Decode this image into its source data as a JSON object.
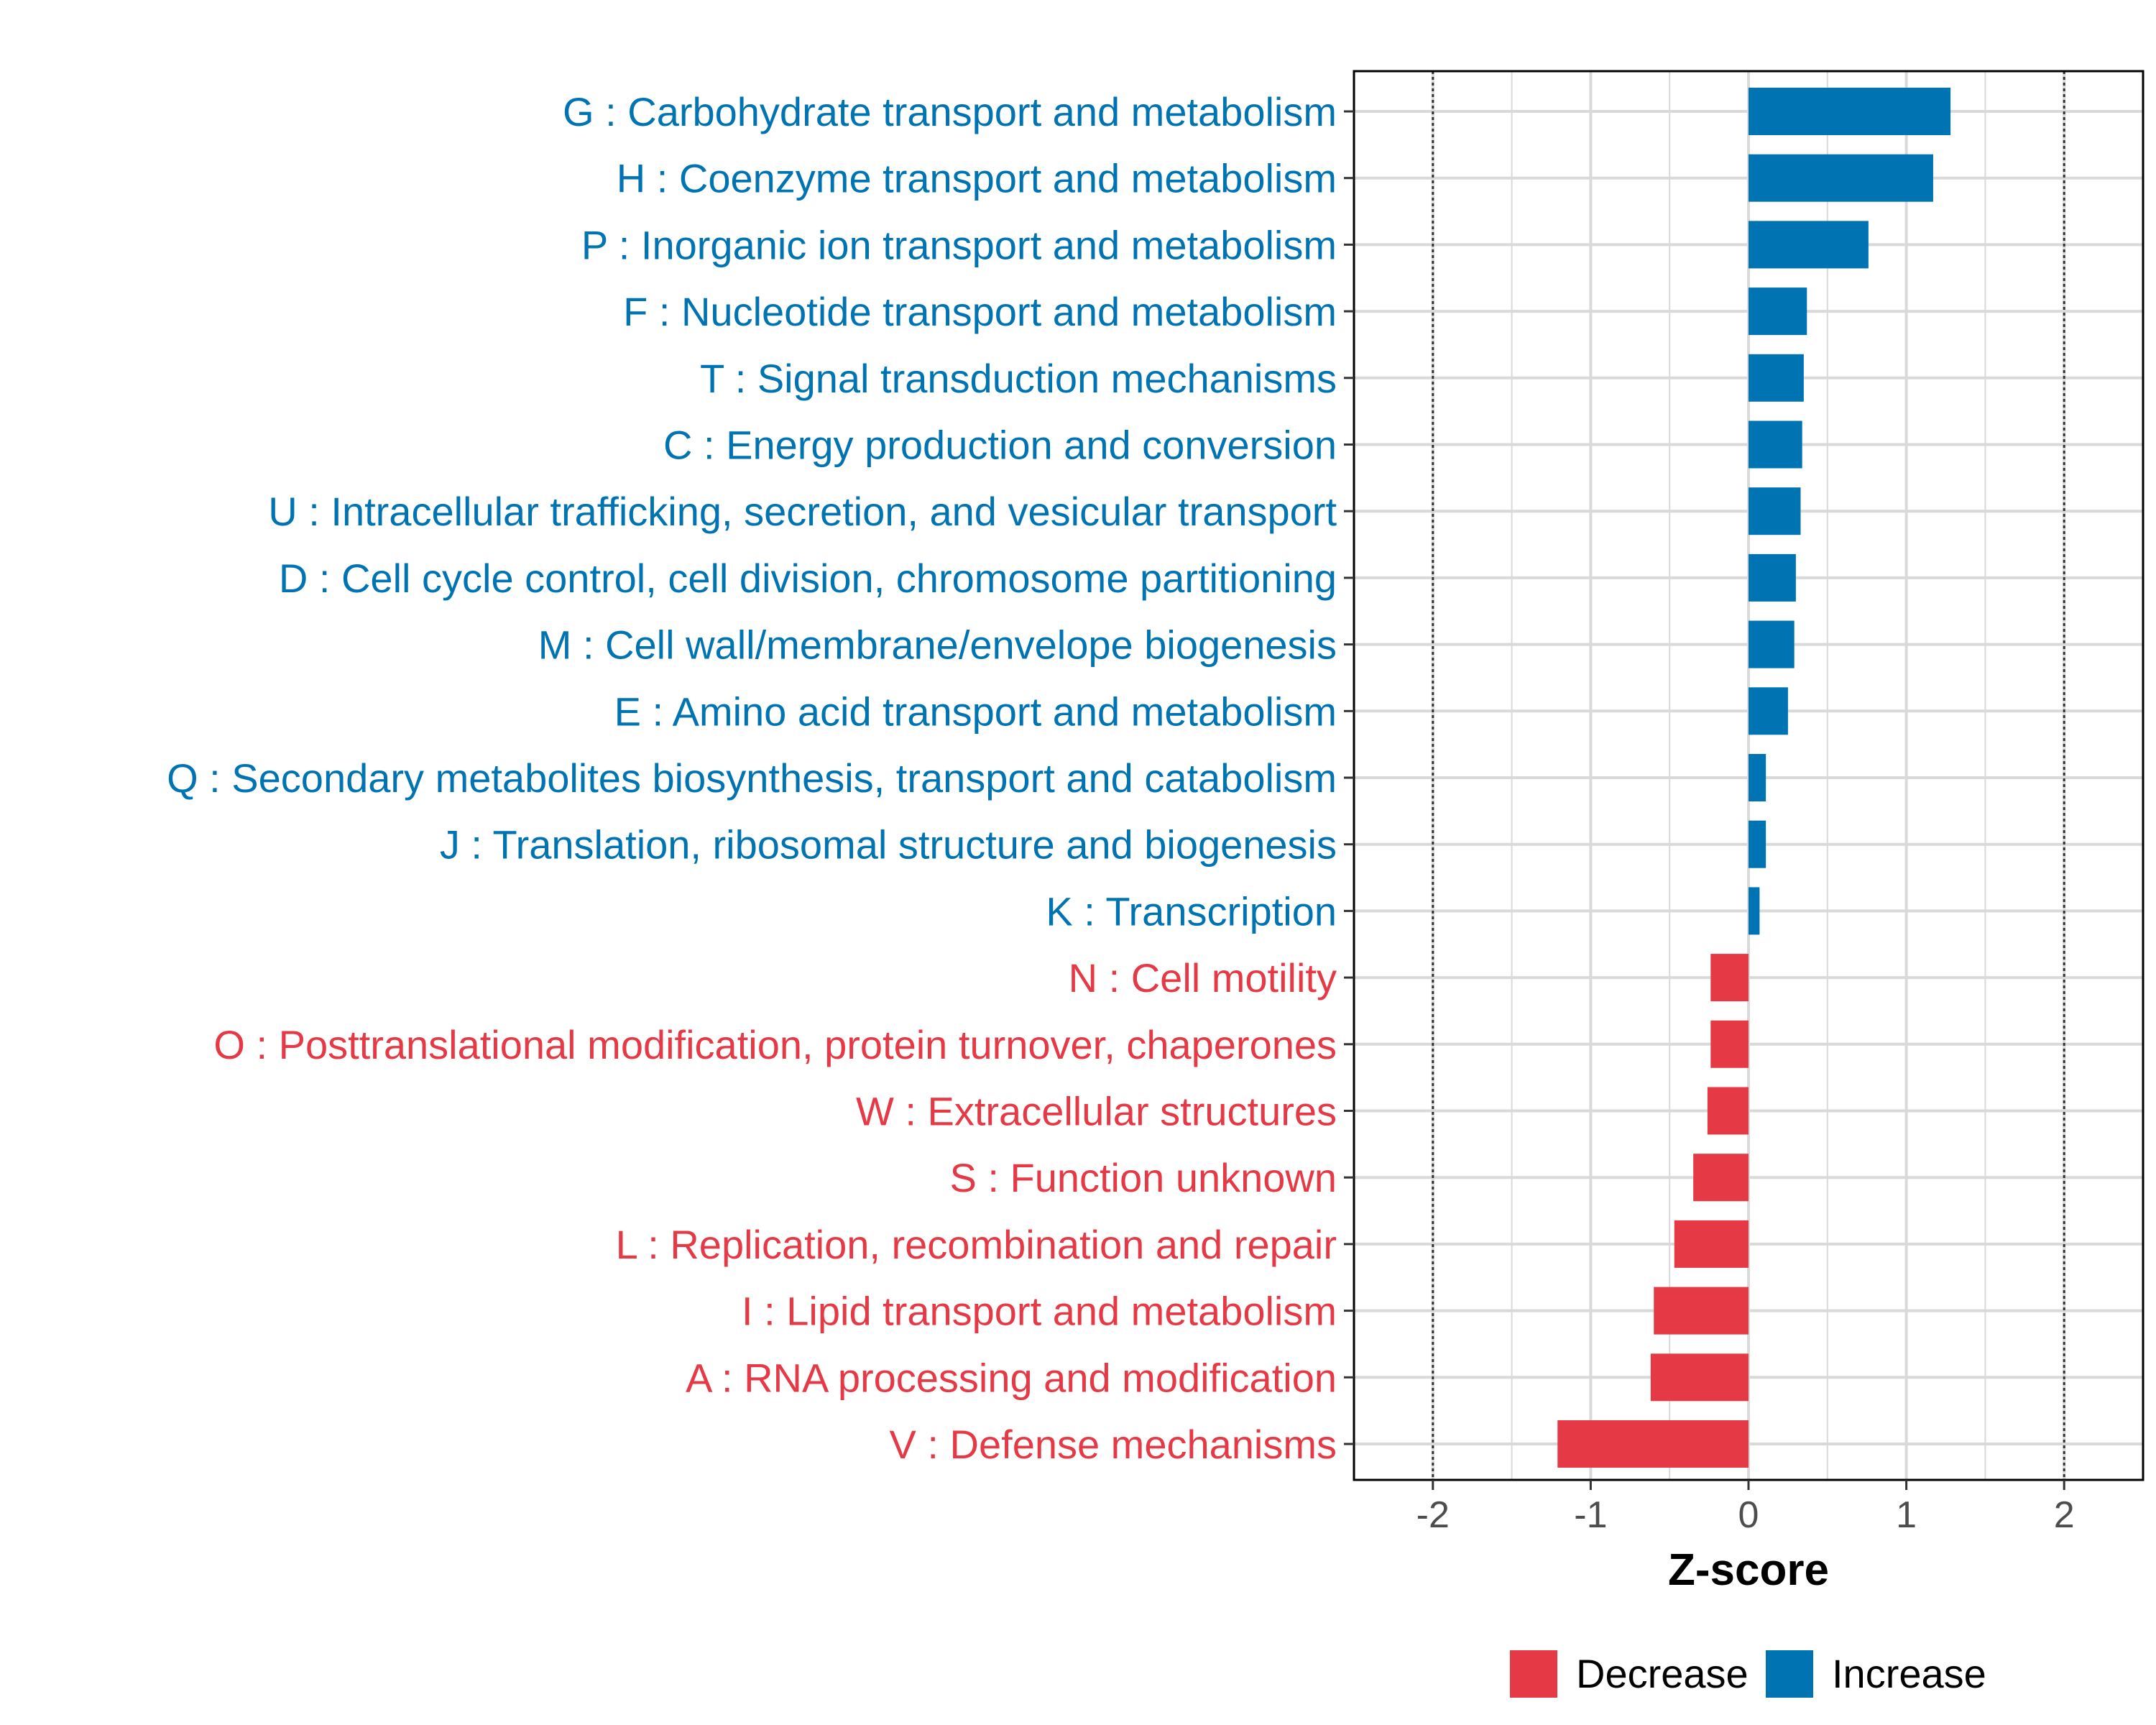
{
  "chart_data": {
    "type": "bar",
    "orientation": "horizontal",
    "title": "",
    "xlabel": "Z-score",
    "ylabel": "",
    "xlim": [
      -2.5,
      2.5
    ],
    "x_ticks": [
      -2,
      -1,
      0,
      1,
      2
    ],
    "x_tick_labels": [
      "-2",
      "-1",
      "0",
      "1",
      "2"
    ],
    "reference_lines": [
      -2,
      2
    ],
    "grid": true,
    "legend_position": "bottom",
    "colors": {
      "Increase": "#0073b3",
      "Decrease": "#e63946"
    },
    "legend": [
      {
        "label": "Decrease",
        "color": "#e63946"
      },
      {
        "label": "Increase",
        "color": "#0073b3"
      }
    ],
    "categories": [
      "G : Carbohydrate transport and metabolism",
      "H : Coenzyme transport and metabolism",
      "P : Inorganic ion transport and metabolism",
      "F : Nucleotide transport and metabolism",
      "T : Signal transduction mechanisms",
      "C : Energy production and conversion",
      "U : Intracellular trafficking, secretion, and vesicular transport",
      "D : Cell cycle control, cell division, chromosome partitioning",
      "M : Cell wall/membrane/envelope biogenesis",
      "E : Amino acid transport and metabolism",
      "Q : Secondary metabolites biosynthesis, transport and catabolism",
      "J : Translation, ribosomal structure and biogenesis",
      "K : Transcription",
      "N : Cell motility",
      "O : Posttranslational modification, protein turnover, chaperones",
      "W : Extracellular structures",
      "S : Function unknown",
      "L : Replication, recombination and repair",
      "I : Lipid transport and metabolism",
      "A : RNA processing and modification",
      "V : Defense mechanisms"
    ],
    "values": [
      1.28,
      1.17,
      0.76,
      0.37,
      0.35,
      0.34,
      0.33,
      0.3,
      0.29,
      0.25,
      0.11,
      0.11,
      0.07,
      -0.24,
      -0.24,
      -0.26,
      -0.35,
      -0.47,
      -0.6,
      -0.62,
      -1.21
    ],
    "groups": [
      "Increase",
      "Increase",
      "Increase",
      "Increase",
      "Increase",
      "Increase",
      "Increase",
      "Increase",
      "Increase",
      "Increase",
      "Increase",
      "Increase",
      "Increase",
      "Decrease",
      "Decrease",
      "Decrease",
      "Decrease",
      "Decrease",
      "Decrease",
      "Decrease",
      "Decrease"
    ]
  }
}
